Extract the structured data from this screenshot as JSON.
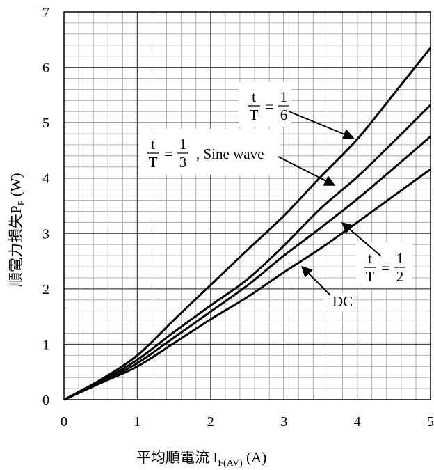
{
  "chart_data": {
    "type": "line",
    "xlabel": {
      "main": "平均順電流 I",
      "sub": "F(AV)",
      "unit": " (A)"
    },
    "ylabel": {
      "main": "順電力損失P",
      "sub": "F",
      "unit": "  (W)"
    },
    "xlim": [
      0,
      5
    ],
    "ylim": [
      0,
      7
    ],
    "x_ticks": [
      "0",
      "1",
      "2",
      "3",
      "4",
      "5"
    ],
    "y_ticks": [
      "0",
      "1",
      "2",
      "3",
      "4",
      "5",
      "6",
      "7"
    ],
    "grid": true,
    "series": [
      {
        "name": "t/T = 1/6",
        "x": [
          0,
          0.5,
          1,
          1.5,
          2,
          2.5,
          3,
          3.5,
          4,
          4.5,
          5
        ],
        "y": [
          0,
          0.36,
          0.8,
          1.44,
          2.07,
          2.7,
          3.32,
          4.02,
          4.7,
          5.52,
          6.35
        ]
      },
      {
        "name": "t/T = 1/3, Sine wave",
        "x": [
          0,
          0.5,
          1,
          1.5,
          2,
          2.5,
          3,
          3.5,
          4,
          4.5,
          5
        ],
        "y": [
          0,
          0.33,
          0.72,
          1.22,
          1.7,
          2.17,
          2.78,
          3.45,
          4.02,
          4.66,
          5.32
        ]
      },
      {
        "name": "t/T = 1/2",
        "x": [
          0,
          0.5,
          1,
          1.5,
          2,
          2.5,
          3,
          3.5,
          4,
          4.5,
          5
        ],
        "y": [
          0,
          0.31,
          0.66,
          1.12,
          1.59,
          2.06,
          2.6,
          3.1,
          3.62,
          4.18,
          4.75
        ]
      },
      {
        "name": "DC",
        "x": [
          0,
          0.5,
          1,
          1.5,
          2,
          2.5,
          3,
          3.5,
          4,
          4.5,
          5
        ],
        "y": [
          0,
          0.3,
          0.6,
          1.02,
          1.45,
          1.85,
          2.3,
          2.73,
          3.2,
          3.68,
          4.16
        ]
      }
    ],
    "annotations": [
      {
        "id": "a16",
        "num": "t",
        "den": "T",
        "eq": "=",
        "rnum": "1",
        "rden": "6",
        "extra": ""
      },
      {
        "id": "a13",
        "num": "t",
        "den": "T",
        "eq": "=",
        "rnum": "1",
        "rden": "3",
        "extra": ", Sine wave"
      },
      {
        "id": "a12",
        "num": "t",
        "den": "T",
        "eq": "=",
        "rnum": "1",
        "rden": "2",
        "extra": ""
      },
      {
        "id": "dc",
        "text": "DC"
      }
    ]
  }
}
